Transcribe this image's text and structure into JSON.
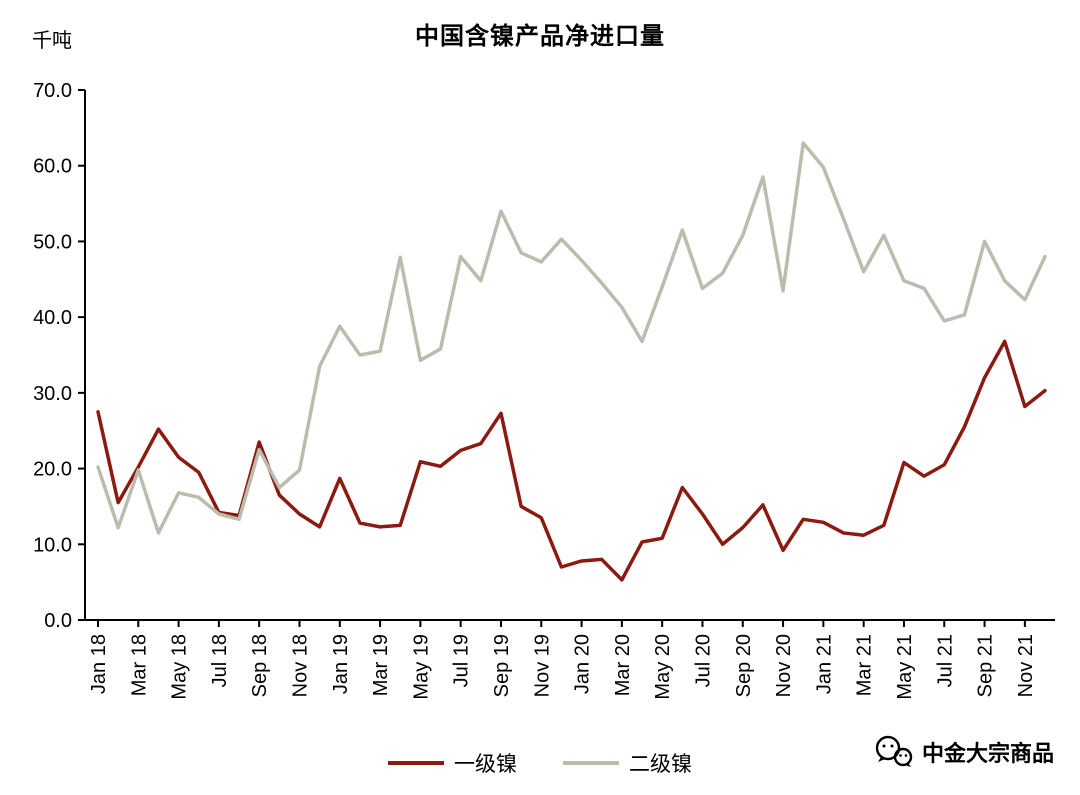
{
  "chart_data": {
    "type": "line",
    "title": "中国含镍产品净进口量",
    "unit_label": "千吨",
    "ylim": [
      0,
      70
    ],
    "ytick_step": 10,
    "ytick_labels": [
      "0.0",
      "10.0",
      "20.0",
      "30.0",
      "40.0",
      "50.0",
      "60.0",
      "70.0"
    ],
    "grid": false,
    "legend_position": "bottom",
    "x": [
      "Jan 18",
      "Feb 18",
      "Mar 18",
      "Apr 18",
      "May 18",
      "Jun 18",
      "Jul 18",
      "Aug 18",
      "Sep 18",
      "Oct 18",
      "Nov 18",
      "Dec 18",
      "Jan 19",
      "Feb 19",
      "Mar 19",
      "Apr 19",
      "May 19",
      "Jun 19",
      "Jul 19",
      "Aug 19",
      "Sep 19",
      "Oct 19",
      "Nov 19",
      "Dec 19",
      "Jan 20",
      "Feb 20",
      "Mar 20",
      "Apr 20",
      "May 20",
      "Jun 20",
      "Jul 20",
      "Aug 20",
      "Sep 20",
      "Oct 20",
      "Nov 20",
      "Dec 20",
      "Jan 21",
      "Feb 21",
      "Mar 21",
      "Apr 21",
      "May 21",
      "Jun 21",
      "Jul 21",
      "Aug 21",
      "Sep 21",
      "Oct 21",
      "Nov 21",
      "Dec 21"
    ],
    "x_labels_shown": [
      "Jan 18",
      "Mar 18",
      "May 18",
      "Jul 18",
      "Sep 18",
      "Nov 18",
      "Jan 19",
      "Mar 19",
      "May 19",
      "Jul 19",
      "Sep 19",
      "Nov 19",
      "Jan 20",
      "Mar 20",
      "May 20",
      "Jul 20",
      "Sep 20",
      "Nov 20",
      "Jan 21",
      "Mar 21",
      "May 21",
      "Jul 21",
      "Sep 21",
      "Nov 21"
    ],
    "series": [
      {
        "name": "一级镍",
        "color": "#8b1a10",
        "values": [
          27.5,
          15.5,
          20.2,
          25.2,
          21.5,
          19.5,
          14.2,
          13.8,
          23.5,
          16.5,
          14.0,
          12.3,
          18.7,
          12.8,
          12.3,
          12.5,
          20.9,
          20.3,
          22.4,
          23.3,
          27.3,
          15.0,
          13.5,
          7.0,
          7.8,
          8.0,
          5.3,
          10.3,
          10.8,
          17.5,
          14.0,
          10.0,
          12.2,
          15.2,
          9.2,
          13.3,
          12.9,
          11.5,
          11.2,
          12.5,
          20.8,
          19.0,
          20.5,
          25.5,
          32.0,
          36.8,
          28.2,
          30.3
        ]
      },
      {
        "name": "二级镍",
        "color": "#bcbcae",
        "values": [
          20.2,
          12.2,
          19.8,
          11.5,
          16.8,
          16.2,
          14.0,
          13.3,
          22.5,
          17.5,
          19.8,
          33.5,
          38.8,
          35.0,
          35.5,
          47.9,
          34.3,
          35.8,
          48.0,
          44.8,
          54.0,
          48.5,
          47.3,
          50.3,
          47.5,
          44.5,
          41.3,
          36.8,
          44.0,
          51.5,
          43.8,
          45.8,
          50.8,
          58.5,
          43.5,
          63.0,
          59.8,
          53.0,
          46.0,
          50.8,
          44.8,
          43.8,
          39.5,
          40.3,
          50.0,
          44.8,
          42.3,
          48.0
        ]
      }
    ]
  },
  "watermark": {
    "text": "中金大宗商品",
    "icon": "wechat-icon"
  }
}
